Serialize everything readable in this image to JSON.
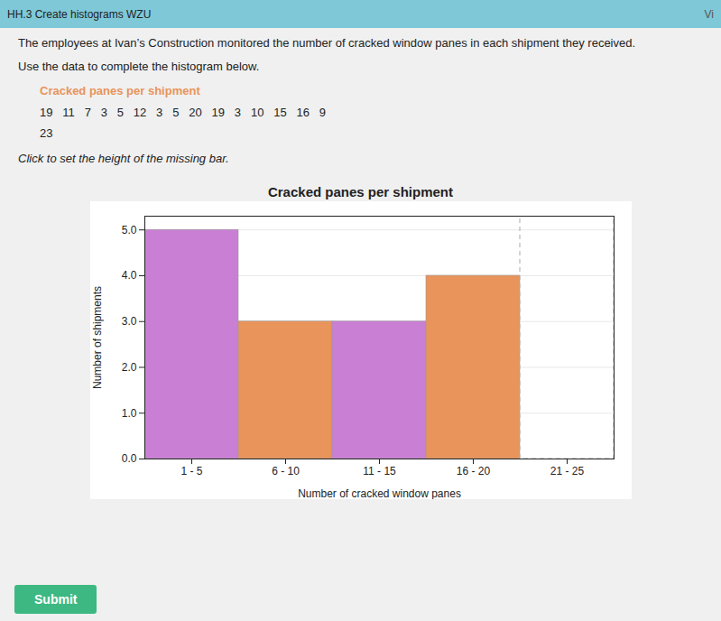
{
  "chart_data": {
    "type": "bar",
    "title": "Cracked panes per shipment",
    "xlabel": "Number of cracked window panes",
    "ylabel": "Number of shipments",
    "categories": [
      "1 - 5",
      "6 - 10",
      "11 - 15",
      "16 - 20",
      "21 - 25"
    ],
    "values": [
      5,
      3,
      3,
      4,
      0
    ],
    "colors": [
      "#c97fd4",
      "#e8945a",
      "#c97fd4",
      "#e8945a",
      "#aaaaaa"
    ],
    "ylim": [
      0,
      5.3
    ],
    "yticks": [
      0,
      1,
      2,
      3,
      4,
      5
    ],
    "grid": true,
    "annotations": [
      "HH.3 Create histograms  WZU",
      "Vi",
      "The employees at Ivan’s Construction monitored the number of cracked window panes in",
      "each shipment they received.",
      "Use the data to complete the histogram below.",
      "Cracked panes per shipment",
      "19   11   7   3   5   12   3   5   20   19   3   10   15   16   9",
      "23",
      "Click to set the height of the missing bar.",
      "Submit"
    ]
  }
}
